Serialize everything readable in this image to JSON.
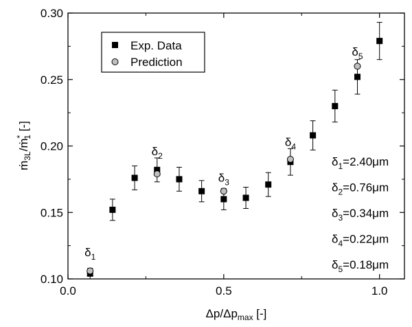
{
  "chart_data": {
    "type": "scatter",
    "xlabel": "Δp/Δp_max [-]",
    "ylabel": "ṁ_3L/ṁ*_1 [-]",
    "xlim": [
      0.0,
      1.08
    ],
    "ylim": [
      0.1,
      0.3
    ],
    "xticks": [
      0.0,
      0.5,
      1.0
    ],
    "yticks": [
      0.1,
      0.15,
      0.2,
      0.25,
      0.3
    ],
    "xtick_labels": [
      "0.0",
      "0.5",
      "1.0"
    ],
    "ytick_labels": [
      "0.10",
      "0.15",
      "0.20",
      "0.25",
      "0.30"
    ],
    "grid": false,
    "legend_position": "top-left",
    "series": [
      {
        "name": "Exp. Data",
        "marker": "square",
        "color": "#000000",
        "x": [
          0.071,
          0.143,
          0.214,
          0.286,
          0.357,
          0.429,
          0.5,
          0.571,
          0.643,
          0.714,
          0.786,
          0.857,
          0.929,
          1.0
        ],
        "y": [
          0.104,
          0.152,
          0.176,
          0.182,
          0.175,
          0.166,
          0.16,
          0.161,
          0.171,
          0.188,
          0.208,
          0.23,
          0.252,
          0.279
        ],
        "err": [
          0.004,
          0.008,
          0.009,
          0.009,
          0.009,
          0.008,
          0.008,
          0.008,
          0.009,
          0.01,
          0.011,
          0.012,
          0.013,
          0.014
        ]
      },
      {
        "name": "Prediction",
        "marker": "circle",
        "color": "#c0c0c0",
        "x": [
          0.071,
          0.286,
          0.5,
          0.714,
          0.929
        ],
        "y": [
          0.106,
          0.179,
          0.166,
          0.19,
          0.26
        ]
      }
    ],
    "point_labels": [
      {
        "base": "δ",
        "sub": "1",
        "x": 0.071,
        "y": 0.117
      },
      {
        "base": "δ",
        "sub": "2",
        "x": 0.286,
        "y": 0.193
      },
      {
        "base": "δ",
        "sub": "3",
        "x": 0.5,
        "y": 0.173
      },
      {
        "base": "δ",
        "sub": "4",
        "x": 0.714,
        "y": 0.2
      },
      {
        "base": "δ",
        "sub": "5",
        "x": 0.929,
        "y": 0.268
      }
    ],
    "annotations": [
      {
        "base": "δ",
        "sub": "1",
        "text": "=2.40μm"
      },
      {
        "base": "δ",
        "sub": "2",
        "text": "=0.76μm"
      },
      {
        "base": "δ",
        "sub": "3",
        "text": "=0.34μm"
      },
      {
        "base": "δ",
        "sub": "4",
        "text": "=0.22μm"
      },
      {
        "base": "δ",
        "sub": "5",
        "text": "=0.18μm"
      }
    ]
  }
}
